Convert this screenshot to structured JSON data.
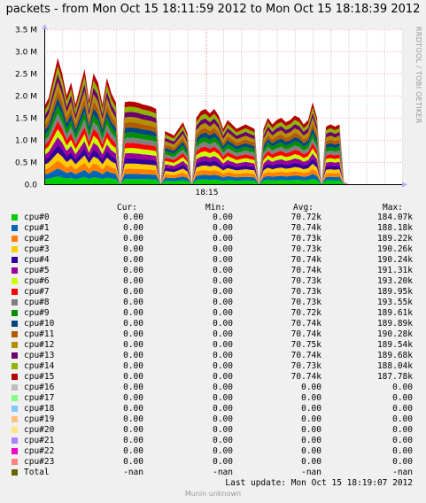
{
  "title": "packets - from Mon Oct 15 18:11:59 2012 to Mon Oct 15 18:18:39 2012",
  "watermark": "RRDTOOL / TOBI OETIKER",
  "footer": "Munin unknown",
  "last_update": "Last update:  Mon Oct 15 18:19:07 2012",
  "legend_headers": {
    "cur": "Cur:",
    "min": "Min:",
    "avg": "Avg:",
    "max": "Max:"
  },
  "chart_data": {
    "type": "area",
    "stacked": true,
    "title": "packets - from Mon Oct 15 18:11:59 2012 to Mon Oct 15 18:18:39 2012",
    "xlabel": "",
    "ylabel": "",
    "y_ticks": [
      "0.0",
      "0.5 M",
      "1.0 M",
      "1.5 M",
      "2.0 M",
      "2.5 M",
      "3.0 M",
      "3.5 M"
    ],
    "ylim": [
      0,
      3500000
    ],
    "x_ticks": [
      "18:15"
    ],
    "grid": true,
    "x": [
      0,
      5,
      10,
      15,
      20,
      25,
      30,
      35,
      40,
      45,
      50,
      55,
      60,
      65,
      70,
      75,
      80,
      85,
      90,
      95,
      100,
      105,
      110,
      115,
      120,
      125,
      130,
      135,
      140,
      145,
      150,
      155,
      160,
      165,
      170,
      175,
      180,
      185,
      190,
      195,
      200,
      205,
      210,
      215,
      220,
      225,
      230,
      235,
      240,
      245,
      250,
      255,
      260,
      265,
      270,
      275,
      280,
      285,
      290,
      295,
      300,
      305,
      310,
      315,
      320,
      325,
      330,
      335,
      340,
      345,
      350,
      355,
      360,
      365,
      370,
      375,
      380,
      385,
      390,
      395,
      400
    ],
    "x_unit": "seconds since 18:11:59",
    "total": [
      1750000,
      1950000,
      2400000,
      2850000,
      2500000,
      2000000,
      2300000,
      1800000,
      2200000,
      2600000,
      1900000,
      2500000,
      2300000,
      1800000,
      2400000,
      2050000,
      1850000,
      0,
      1850000,
      1870000,
      1860000,
      1840000,
      1800000,
      1780000,
      1750000,
      1700000,
      0,
      1200000,
      1150000,
      1100000,
      1250000,
      1400000,
      1150000,
      0,
      1500000,
      1650000,
      1700000,
      1600000,
      1700000,
      1550000,
      1250000,
      1450000,
      1350000,
      1250000,
      1300000,
      1350000,
      1300000,
      1250000,
      0,
      1250000,
      1500000,
      1350000,
      1450000,
      1500000,
      1400000,
      1450000,
      1550000,
      1500000,
      1350000,
      1450000,
      1850000,
      1500000,
      0,
      1300000,
      1350000,
      1300000,
      1350000,
      50000,
      0,
      0,
      0,
      0,
      0,
      0,
      0,
      0,
      0,
      0,
      0,
      0,
      0
    ],
    "series": [
      {
        "name": "cpu#0",
        "color": "#00cc00",
        "share": 0.0625
      },
      {
        "name": "cpu#1",
        "color": "#0066b3",
        "share": 0.0625
      },
      {
        "name": "cpu#2",
        "color": "#ff8000",
        "share": 0.0625
      },
      {
        "name": "cpu#3",
        "color": "#ffcc00",
        "share": 0.0625
      },
      {
        "name": "cpu#4",
        "color": "#330099",
        "share": 0.0625
      },
      {
        "name": "cpu#5",
        "color": "#990099",
        "share": 0.0625
      },
      {
        "name": "cpu#6",
        "color": "#ccff00",
        "share": 0.0625
      },
      {
        "name": "cpu#7",
        "color": "#ff0000",
        "share": 0.0625
      },
      {
        "name": "cpu#8",
        "color": "#808080",
        "share": 0.0625
      },
      {
        "name": "cpu#9",
        "color": "#008f00",
        "share": 0.0625
      },
      {
        "name": "cpu#10",
        "color": "#00487d",
        "share": 0.0625
      },
      {
        "name": "cpu#11",
        "color": "#b35a00",
        "share": 0.0625
      },
      {
        "name": "cpu#12",
        "color": "#b38f00",
        "share": 0.0625
      },
      {
        "name": "cpu#13",
        "color": "#6b006b",
        "share": 0.0625
      },
      {
        "name": "cpu#14",
        "color": "#8fb300",
        "share": 0.0625
      },
      {
        "name": "cpu#15",
        "color": "#b30000",
        "share": 0.0625
      },
      {
        "name": "cpu#16",
        "color": "#bebebe",
        "share": 0
      },
      {
        "name": "cpu#17",
        "color": "#80ff80",
        "share": 0
      },
      {
        "name": "cpu#18",
        "color": "#80c9ff",
        "share": 0
      },
      {
        "name": "cpu#19",
        "color": "#ffc080",
        "share": 0
      },
      {
        "name": "cpu#20",
        "color": "#ffe680",
        "share": 0
      },
      {
        "name": "cpu#21",
        "color": "#aa80ff",
        "share": 0
      },
      {
        "name": "cpu#22",
        "color": "#ee00cc",
        "share": 0
      },
      {
        "name": "cpu#23",
        "color": "#ff8080",
        "share": 0
      }
    ]
  },
  "legend": [
    {
      "name": "cpu#0",
      "color": "#00cc00",
      "cur": "0.00",
      "min": "0.00",
      "avg": "70.72k",
      "max": "184.07k"
    },
    {
      "name": "cpu#1",
      "color": "#0066b3",
      "cur": "0.00",
      "min": "0.00",
      "avg": "70.74k",
      "max": "188.18k"
    },
    {
      "name": "cpu#2",
      "color": "#ff8000",
      "cur": "0.00",
      "min": "0.00",
      "avg": "70.73k",
      "max": "189.22k"
    },
    {
      "name": "cpu#3",
      "color": "#ffcc00",
      "cur": "0.00",
      "min": "0.00",
      "avg": "70.73k",
      "max": "190.26k"
    },
    {
      "name": "cpu#4",
      "color": "#330099",
      "cur": "0.00",
      "min": "0.00",
      "avg": "70.74k",
      "max": "190.24k"
    },
    {
      "name": "cpu#5",
      "color": "#990099",
      "cur": "0.00",
      "min": "0.00",
      "avg": "70.74k",
      "max": "191.31k"
    },
    {
      "name": "cpu#6",
      "color": "#ccff00",
      "cur": "0.00",
      "min": "0.00",
      "avg": "70.73k",
      "max": "193.20k"
    },
    {
      "name": "cpu#7",
      "color": "#ff0000",
      "cur": "0.00",
      "min": "0.00",
      "avg": "70.73k",
      "max": "189.95k"
    },
    {
      "name": "cpu#8",
      "color": "#808080",
      "cur": "0.00",
      "min": "0.00",
      "avg": "70.73k",
      "max": "193.55k"
    },
    {
      "name": "cpu#9",
      "color": "#008f00",
      "cur": "0.00",
      "min": "0.00",
      "avg": "70.72k",
      "max": "189.61k"
    },
    {
      "name": "cpu#10",
      "color": "#00487d",
      "cur": "0.00",
      "min": "0.00",
      "avg": "70.74k",
      "max": "189.89k"
    },
    {
      "name": "cpu#11",
      "color": "#b35a00",
      "cur": "0.00",
      "min": "0.00",
      "avg": "70.74k",
      "max": "190.28k"
    },
    {
      "name": "cpu#12",
      "color": "#b38f00",
      "cur": "0.00",
      "min": "0.00",
      "avg": "70.75k",
      "max": "189.54k"
    },
    {
      "name": "cpu#13",
      "color": "#6b006b",
      "cur": "0.00",
      "min": "0.00",
      "avg": "70.74k",
      "max": "189.68k"
    },
    {
      "name": "cpu#14",
      "color": "#8fb300",
      "cur": "0.00",
      "min": "0.00",
      "avg": "70.73k",
      "max": "188.04k"
    },
    {
      "name": "cpu#15",
      "color": "#b30000",
      "cur": "0.00",
      "min": "0.00",
      "avg": "70.74k",
      "max": "187.78k"
    },
    {
      "name": "cpu#16",
      "color": "#bebebe",
      "cur": "0.00",
      "min": "0.00",
      "avg": "0.00",
      "max": "0.00"
    },
    {
      "name": "cpu#17",
      "color": "#80ff80",
      "cur": "0.00",
      "min": "0.00",
      "avg": "0.00",
      "max": "0.00"
    },
    {
      "name": "cpu#18",
      "color": "#80c9ff",
      "cur": "0.00",
      "min": "0.00",
      "avg": "0.00",
      "max": "0.00"
    },
    {
      "name": "cpu#19",
      "color": "#ffc080",
      "cur": "0.00",
      "min": "0.00",
      "avg": "0.00",
      "max": "0.00"
    },
    {
      "name": "cpu#20",
      "color": "#ffe680",
      "cur": "0.00",
      "min": "0.00",
      "avg": "0.00",
      "max": "0.00"
    },
    {
      "name": "cpu#21",
      "color": "#aa80ff",
      "cur": "0.00",
      "min": "0.00",
      "avg": "0.00",
      "max": "0.00"
    },
    {
      "name": "cpu#22",
      "color": "#ee00cc",
      "cur": "0.00",
      "min": "0.00",
      "avg": "0.00",
      "max": "0.00"
    },
    {
      "name": "cpu#23",
      "color": "#ff8080",
      "cur": "0.00",
      "min": "0.00",
      "avg": "0.00",
      "max": "0.00"
    },
    {
      "name": "Total",
      "color": "#666600",
      "cur": "-nan",
      "min": "-nan",
      "avg": "-nan",
      "max": "-nan"
    }
  ]
}
